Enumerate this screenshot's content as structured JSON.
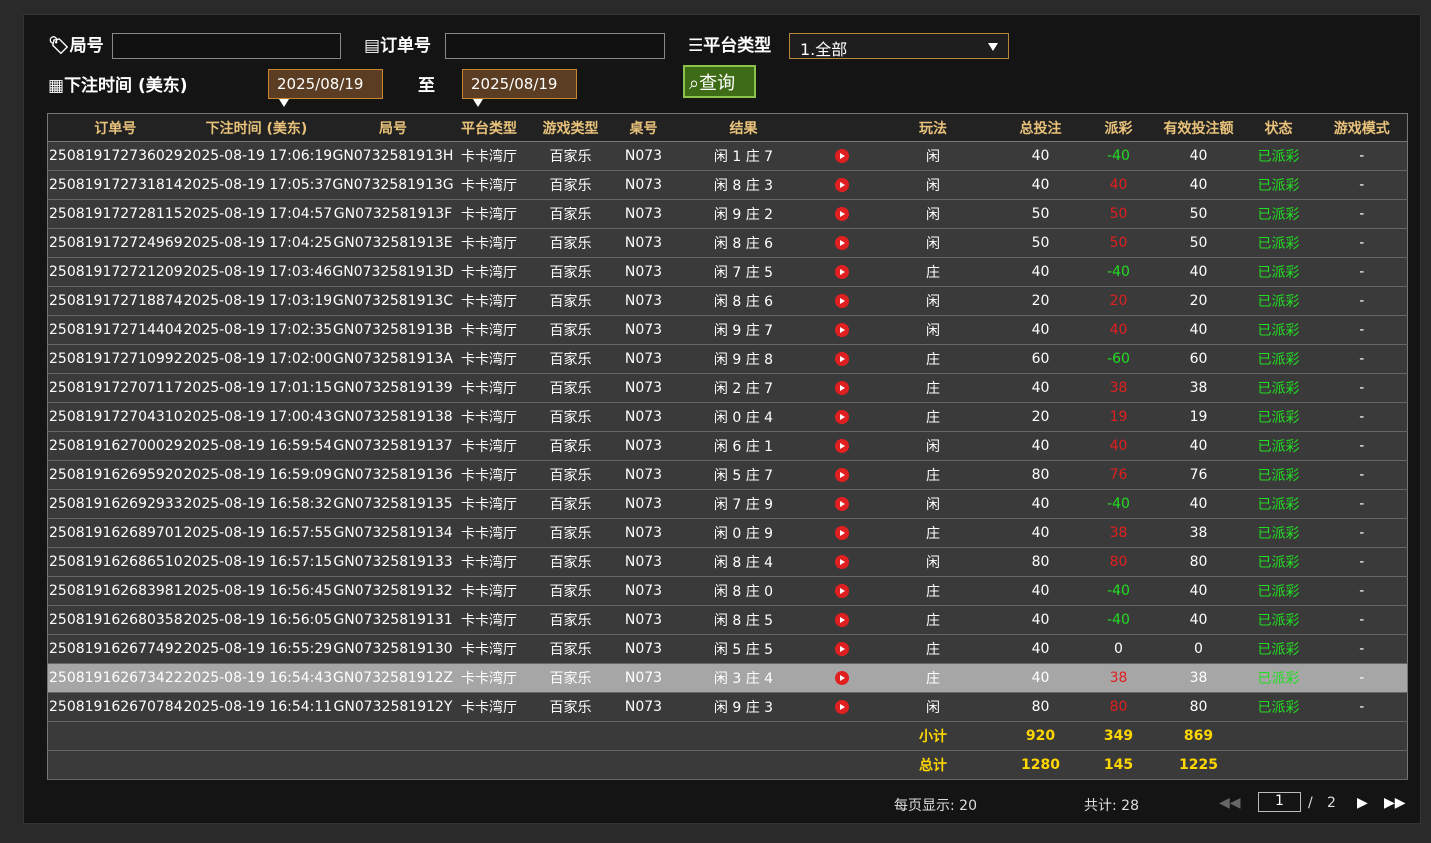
{
  "filters": {
    "round_label": "局号",
    "order_label": "订单号",
    "platform_label": "平台类型",
    "platform_value": "1.全部",
    "time_label": "下注时间 (美东)",
    "date_from": "2025/08/19",
    "to_label": "至",
    "date_to": "2025/08/19",
    "query_button": "查询"
  },
  "table": {
    "headers": [
      "订单号",
      "下注时间 (美东)",
      "局号",
      "平台类型",
      "游戏类型",
      "桌号",
      "结果",
      "玩法",
      "总投注",
      "派彩",
      "有效投注额",
      "状态",
      "游戏模式"
    ],
    "rows": [
      [
        "250819172736029",
        "2025-08-19 17:06:19",
        "GN0732581913H",
        "卡卡湾厅",
        "百家乐",
        "N073",
        "闲 1 庄 7",
        "闲",
        40,
        -40,
        40,
        "已派彩",
        "-"
      ],
      [
        "250819172731814",
        "2025-08-19 17:05:37",
        "GN0732581913G",
        "卡卡湾厅",
        "百家乐",
        "N073",
        "闲 8 庄 3",
        "闲",
        40,
        40,
        40,
        "已派彩",
        "-"
      ],
      [
        "250819172728115",
        "2025-08-19 17:04:57",
        "GN0732581913F",
        "卡卡湾厅",
        "百家乐",
        "N073",
        "闲 9 庄 2",
        "闲",
        50,
        50,
        50,
        "已派彩",
        "-"
      ],
      [
        "250819172724969",
        "2025-08-19 17:04:25",
        "GN0732581913E",
        "卡卡湾厅",
        "百家乐",
        "N073",
        "闲 8 庄 6",
        "闲",
        50,
        50,
        50,
        "已派彩",
        "-"
      ],
      [
        "250819172721209",
        "2025-08-19 17:03:46",
        "GN0732581913D",
        "卡卡湾厅",
        "百家乐",
        "N073",
        "闲 7 庄 5",
        "庄",
        40,
        -40,
        40,
        "已派彩",
        "-"
      ],
      [
        "250819172718874",
        "2025-08-19 17:03:19",
        "GN0732581913C",
        "卡卡湾厅",
        "百家乐",
        "N073",
        "闲 8 庄 6",
        "闲",
        20,
        20,
        20,
        "已派彩",
        "-"
      ],
      [
        "250819172714404",
        "2025-08-19 17:02:35",
        "GN0732581913B",
        "卡卡湾厅",
        "百家乐",
        "N073",
        "闲 9 庄 7",
        "闲",
        40,
        40,
        40,
        "已派彩",
        "-"
      ],
      [
        "250819172710992",
        "2025-08-19 17:02:00",
        "GN0732581913A",
        "卡卡湾厅",
        "百家乐",
        "N073",
        "闲 9 庄 8",
        "庄",
        60,
        -60,
        60,
        "已派彩",
        "-"
      ],
      [
        "250819172707117",
        "2025-08-19 17:01:15",
        "GN07325819139",
        "卡卡湾厅",
        "百家乐",
        "N073",
        "闲 2 庄 7",
        "庄",
        40,
        38,
        38,
        "已派彩",
        "-"
      ],
      [
        "250819172704310",
        "2025-08-19 17:00:43",
        "GN07325819138",
        "卡卡湾厅",
        "百家乐",
        "N073",
        "闲 0 庄 4",
        "庄",
        20,
        19,
        19,
        "已派彩",
        "-"
      ],
      [
        "250819162700029",
        "2025-08-19 16:59:54",
        "GN07325819137",
        "卡卡湾厅",
        "百家乐",
        "N073",
        "闲 6 庄 1",
        "闲",
        40,
        40,
        40,
        "已派彩",
        "-"
      ],
      [
        "250819162695920",
        "2025-08-19 16:59:09",
        "GN07325819136",
        "卡卡湾厅",
        "百家乐",
        "N073",
        "闲 5 庄 7",
        "庄",
        80,
        76,
        76,
        "已派彩",
        "-"
      ],
      [
        "250819162692933",
        "2025-08-19 16:58:32",
        "GN07325819135",
        "卡卡湾厅",
        "百家乐",
        "N073",
        "闲 7 庄 9",
        "闲",
        40,
        -40,
        40,
        "已派彩",
        "-"
      ],
      [
        "250819162689701",
        "2025-08-19 16:57:55",
        "GN07325819134",
        "卡卡湾厅",
        "百家乐",
        "N073",
        "闲 0 庄 9",
        "庄",
        40,
        38,
        38,
        "已派彩",
        "-"
      ],
      [
        "250819162686510",
        "2025-08-19 16:57:15",
        "GN07325819133",
        "卡卡湾厅",
        "百家乐",
        "N073",
        "闲 8 庄 4",
        "闲",
        80,
        80,
        80,
        "已派彩",
        "-"
      ],
      [
        "250819162683981",
        "2025-08-19 16:56:45",
        "GN07325819132",
        "卡卡湾厅",
        "百家乐",
        "N073",
        "闲 8 庄 0",
        "庄",
        40,
        -40,
        40,
        "已派彩",
        "-"
      ],
      [
        "250819162680358",
        "2025-08-19 16:56:05",
        "GN07325819131",
        "卡卡湾厅",
        "百家乐",
        "N073",
        "闲 8 庄 5",
        "庄",
        40,
        -40,
        40,
        "已派彩",
        "-"
      ],
      [
        "250819162677492",
        "2025-08-19 16:55:29",
        "GN07325819130",
        "卡卡湾厅",
        "百家乐",
        "N073",
        "闲 5 庄 5",
        "庄",
        40,
        0,
        0,
        "已派彩",
        "-"
      ],
      [
        "250819162673422",
        "2025-08-19 16:54:43",
        "GN0732581912Z",
        "卡卡湾厅",
        "百家乐",
        "N073",
        "闲 3 庄 4",
        "庄",
        40,
        38,
        38,
        "已派彩",
        "-"
      ],
      [
        "250819162670784",
        "2025-08-19 16:54:11",
        "GN0732581912Y",
        "卡卡湾厅",
        "百家乐",
        "N073",
        "闲 9 庄 3",
        "闲",
        80,
        80,
        80,
        "已派彩",
        "-"
      ]
    ],
    "subtotal": {
      "label": "小计",
      "total_bet": 920,
      "payout": 349,
      "valid_bet": 869
    },
    "total": {
      "label": "总计",
      "total_bet": 1280,
      "payout": 145,
      "valid_bet": 1225
    }
  },
  "pagination": {
    "per_page": "每页显示: 20",
    "count": "共计: 28",
    "page": "1",
    "separator": "/",
    "pages": "2"
  }
}
